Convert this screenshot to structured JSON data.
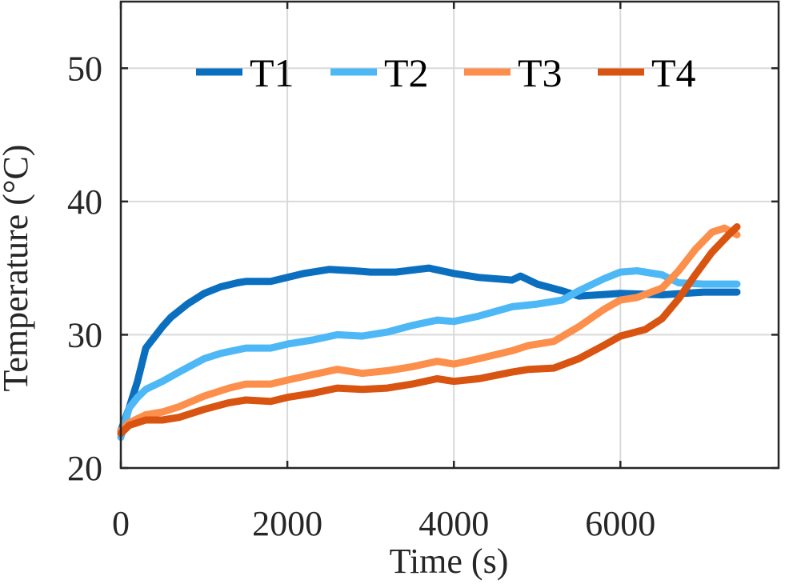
{
  "chart_data": {
    "type": "line",
    "title": "",
    "xlabel": "Time (s)",
    "ylabel": "Temperature (°C)",
    "xlim": [
      0,
      7900
    ],
    "ylim": [
      20,
      55
    ],
    "xticks": [
      0,
      2000,
      4000,
      6000
    ],
    "yticks": [
      20,
      30,
      40,
      50
    ],
    "grid": true,
    "legend": {
      "placement": "top",
      "orientation": "horizontal"
    },
    "series": [
      {
        "name": "T1",
        "color": "#0b6fbf",
        "x": [
          0,
          100,
          200,
          300,
          400,
          500,
          600,
          800,
          1000,
          1200,
          1400,
          1500,
          1800,
          2000,
          2200,
          2500,
          2800,
          3000,
          3300,
          3700,
          4000,
          4300,
          4700,
          4800,
          5000,
          5300,
          5500,
          6000,
          6500,
          7000,
          7400
        ],
        "y": [
          22.8,
          24.5,
          26.5,
          29.0,
          29.8,
          30.6,
          31.3,
          32.3,
          33.1,
          33.6,
          33.9,
          34.0,
          34.0,
          34.3,
          34.6,
          34.9,
          34.8,
          34.7,
          34.7,
          35.0,
          34.6,
          34.3,
          34.1,
          34.4,
          33.8,
          33.3,
          32.9,
          33.1,
          33.0,
          33.2,
          33.2
        ]
      },
      {
        "name": "T2",
        "color": "#4db8f5",
        "x": [
          0,
          100,
          200,
          300,
          500,
          700,
          1000,
          1200,
          1500,
          1800,
          2000,
          2300,
          2600,
          2900,
          3200,
          3500,
          3800,
          4000,
          4300,
          4700,
          5000,
          5300,
          5500,
          5800,
          6000,
          6200,
          6500,
          6700,
          7000,
          7400
        ],
        "y": [
          22.3,
          24.5,
          25.3,
          25.9,
          26.5,
          27.2,
          28.2,
          28.6,
          29.0,
          29.0,
          29.3,
          29.6,
          30.0,
          29.9,
          30.2,
          30.7,
          31.1,
          31.0,
          31.4,
          32.1,
          32.3,
          32.6,
          33.3,
          34.2,
          34.7,
          34.8,
          34.5,
          33.9,
          33.8,
          33.8
        ]
      },
      {
        "name": "T3",
        "color": "#fc8f4b",
        "x": [
          0,
          100,
          300,
          500,
          700,
          1000,
          1300,
          1500,
          1800,
          2000,
          2300,
          2600,
          2900,
          3200,
          3500,
          3800,
          4000,
          4300,
          4700,
          4900,
          5200,
          5500,
          5800,
          6000,
          6200,
          6500,
          6700,
          6900,
          7100,
          7250,
          7400
        ],
        "y": [
          22.8,
          23.4,
          24.0,
          24.2,
          24.6,
          25.4,
          26.0,
          26.3,
          26.3,
          26.6,
          27.0,
          27.4,
          27.1,
          27.3,
          27.6,
          28.0,
          27.8,
          28.2,
          28.8,
          29.2,
          29.5,
          30.6,
          31.9,
          32.6,
          32.8,
          33.5,
          34.8,
          36.4,
          37.7,
          38.0,
          37.5
        ]
      },
      {
        "name": "T4",
        "color": "#d85410",
        "x": [
          0,
          100,
          300,
          500,
          700,
          1000,
          1300,
          1500,
          1800,
          2000,
          2300,
          2600,
          2900,
          3200,
          3500,
          3800,
          4000,
          4300,
          4700,
          4900,
          5200,
          5500,
          5800,
          6000,
          6300,
          6500,
          6700,
          6900,
          7100,
          7300,
          7400
        ],
        "y": [
          22.6,
          23.2,
          23.6,
          23.6,
          23.8,
          24.4,
          24.9,
          25.1,
          25.0,
          25.3,
          25.6,
          26.0,
          25.9,
          26.0,
          26.3,
          26.7,
          26.5,
          26.7,
          27.2,
          27.4,
          27.5,
          28.2,
          29.2,
          29.9,
          30.4,
          31.2,
          32.7,
          34.5,
          36.2,
          37.5,
          38.1
        ]
      }
    ]
  }
}
